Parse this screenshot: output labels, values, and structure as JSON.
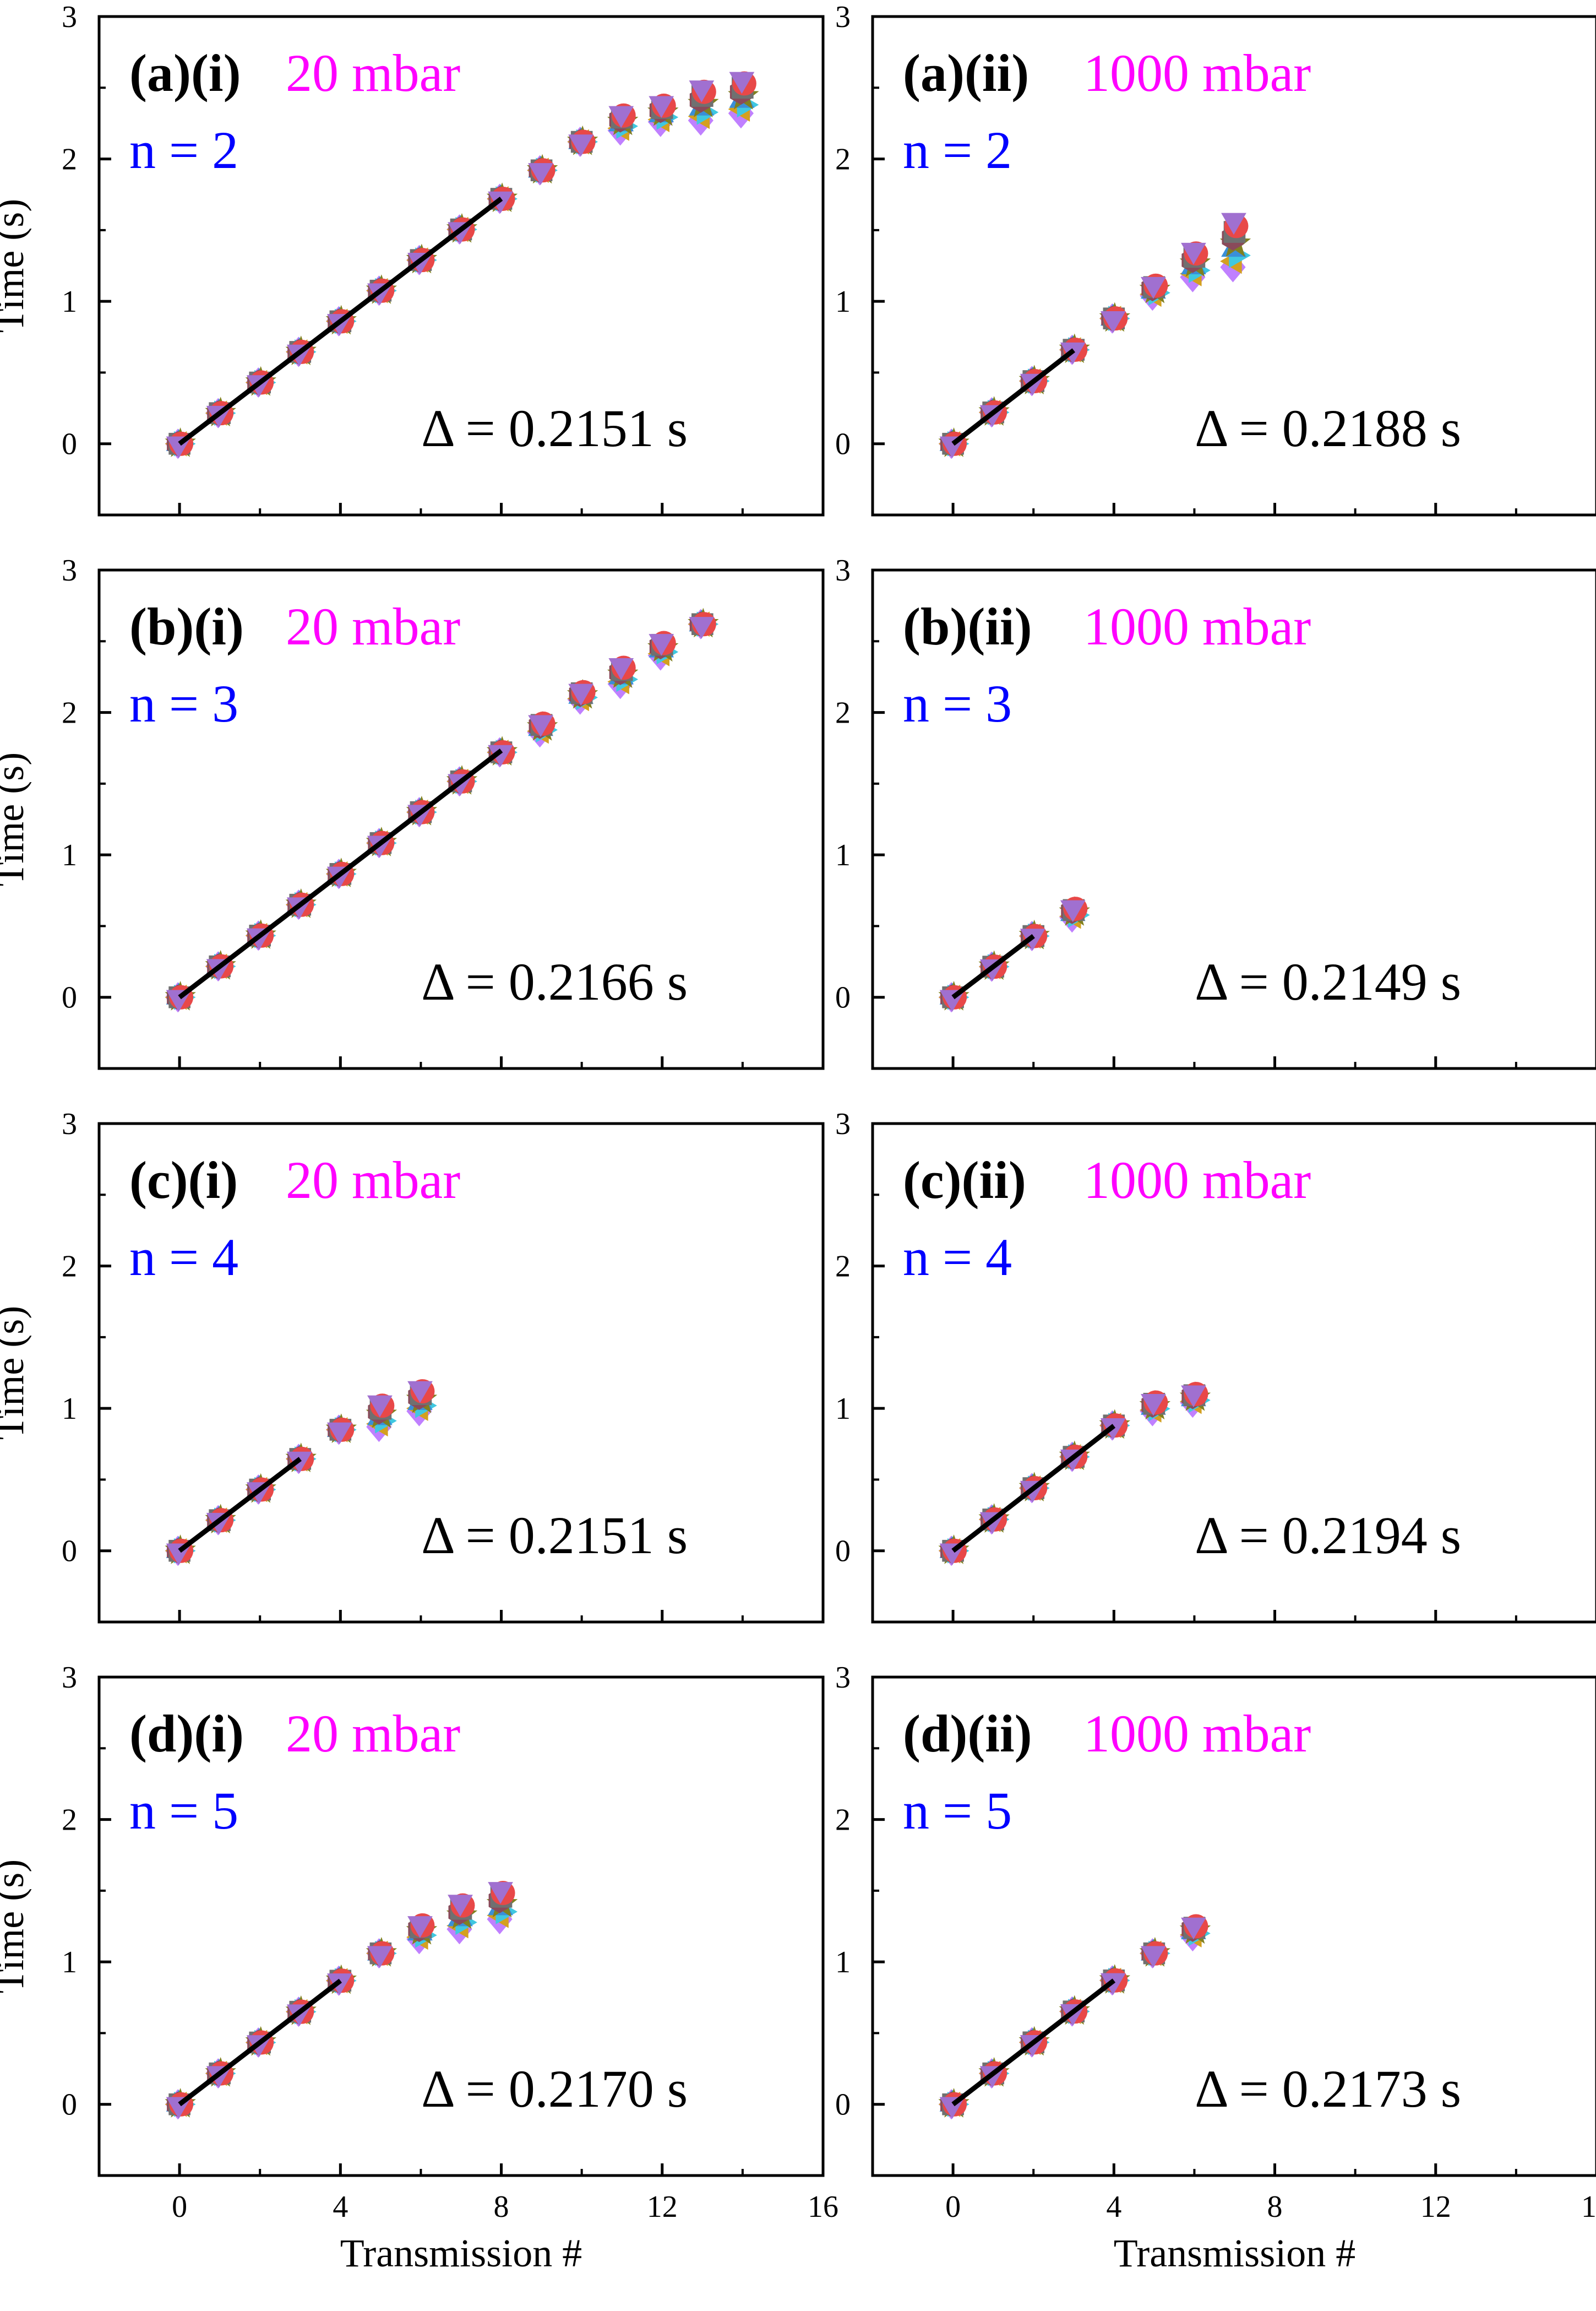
{
  "chart_data": {
    "type": "scatter",
    "xlabel": "Transmission #",
    "ylabel": "Time (s)",
    "xlim": [
      -2,
      16
    ],
    "ylim": [
      -0.5,
      3
    ],
    "xticks": [
      0,
      4,
      8,
      12,
      16
    ],
    "yticks": [
      0,
      1,
      2,
      3
    ],
    "colors": {
      "frame": "#000000",
      "fit": "#000000",
      "pressure": "#ff00ff",
      "n": "#0000ff",
      "markers": [
        "#c080ff",
        "#d4a020",
        "#40c8e0",
        "#3a8fd8",
        "#808020",
        "#8a4a5a",
        "#707070",
        "#e84848",
        "#a070d0"
      ]
    },
    "marker_shapes": [
      "diamond",
      "triangle-left",
      "triangle-right",
      "triangle-up",
      "star",
      "hexagon",
      "square",
      "circle",
      "triangle-down"
    ],
    "panels": [
      {
        "id": "a-i",
        "label": "(a)(i)",
        "pressure": "20 mbar",
        "n": "n = 2",
        "delta": "Δ = 0.2151 s",
        "fit": {
          "slope": 0.2151,
          "x_end": 8
        },
        "points": [
          [
            0,
            0
          ],
          [
            1,
            0.215
          ],
          [
            2,
            0.43
          ],
          [
            3,
            0.645
          ],
          [
            4,
            0.86
          ],
          [
            5,
            1.075
          ],
          [
            6,
            1.29
          ],
          [
            7,
            1.505
          ],
          [
            8,
            1.72
          ],
          [
            9,
            1.92
          ],
          [
            10,
            2.12
          ],
          [
            11,
            2.28
          ],
          [
            12,
            2.35
          ],
          [
            13,
            2.42
          ],
          [
            14,
            2.45
          ]
        ],
        "spread": [
          [
            11,
            2.2,
            2.32
          ],
          [
            12,
            2.26,
            2.39
          ],
          [
            13,
            2.27,
            2.5
          ],
          [
            14,
            2.32,
            2.56
          ]
        ]
      },
      {
        "id": "a-ii",
        "label": "(a)(ii)",
        "pressure": "1000 mbar",
        "n": "n = 2",
        "delta": "Δ = 0.2188 s",
        "fit": {
          "slope": 0.2188,
          "x_end": 3
        },
        "points": [
          [
            0,
            0
          ],
          [
            1,
            0.22
          ],
          [
            2,
            0.44
          ],
          [
            3,
            0.66
          ],
          [
            4,
            0.88
          ],
          [
            5,
            1.09
          ],
          [
            6,
            1.27
          ],
          [
            7,
            1.38
          ]
        ],
        "spread": [
          [
            5,
            1.04,
            1.12
          ],
          [
            6,
            1.17,
            1.36
          ],
          [
            7,
            1.24,
            1.57
          ]
        ]
      },
      {
        "id": "b-i",
        "label": "(b)(i)",
        "pressure": "20 mbar",
        "n": "n = 3",
        "delta": "Δ = 0.2166 s",
        "fit": {
          "slope": 0.2166,
          "x_end": 8
        },
        "points": [
          [
            0,
            0
          ],
          [
            1,
            0.217
          ],
          [
            2,
            0.433
          ],
          [
            3,
            0.65
          ],
          [
            4,
            0.866
          ],
          [
            5,
            1.083
          ],
          [
            6,
            1.3
          ],
          [
            7,
            1.516
          ],
          [
            8,
            1.72
          ],
          [
            9,
            1.9
          ],
          [
            10,
            2.12
          ],
          [
            11,
            2.28
          ],
          [
            12,
            2.46
          ],
          [
            13,
            2.62
          ]
        ],
        "spread": [
          [
            9,
            1.86,
            1.93
          ],
          [
            10,
            2.09,
            2.15
          ],
          [
            11,
            2.2,
            2.33
          ],
          [
            12,
            2.4,
            2.5
          ]
        ]
      },
      {
        "id": "b-ii",
        "label": "(b)(ii)",
        "pressure": "1000 mbar",
        "n": "n = 3",
        "delta": "Δ = 0.2149 s",
        "fit": {
          "slope": 0.2149,
          "x_end": 2
        },
        "points": [
          [
            0,
            0
          ],
          [
            1,
            0.215
          ],
          [
            2,
            0.43
          ],
          [
            3,
            0.61
          ]
        ],
        "spread": [
          [
            3,
            0.56,
            0.63
          ]
        ]
      },
      {
        "id": "c-i",
        "label": "(c)(i)",
        "pressure": "20 mbar",
        "n": "n = 4",
        "delta": "Δ = 0.2151 s",
        "fit": {
          "slope": 0.2151,
          "x_end": 3
        },
        "points": [
          [
            0,
            0
          ],
          [
            1,
            0.215
          ],
          [
            2,
            0.43
          ],
          [
            3,
            0.645
          ],
          [
            4,
            0.85
          ],
          [
            5,
            0.96
          ],
          [
            6,
            1.06
          ]
        ],
        "spread": [
          [
            5,
            0.87,
            1.04
          ],
          [
            6,
            0.98,
            1.14
          ]
        ]
      },
      {
        "id": "c-ii",
        "label": "(c)(ii)",
        "pressure": "1000 mbar",
        "n": "n = 4",
        "delta": "Δ = 0.2194 s",
        "fit": {
          "slope": 0.2194,
          "x_end": 4
        },
        "points": [
          [
            0,
            0
          ],
          [
            1,
            0.22
          ],
          [
            2,
            0.44
          ],
          [
            3,
            0.66
          ],
          [
            4,
            0.88
          ],
          [
            5,
            1.02
          ],
          [
            6,
            1.08
          ]
        ],
        "spread": [
          [
            5,
            0.98,
            1.05
          ],
          [
            6,
            1.04,
            1.11
          ]
        ]
      },
      {
        "id": "d-i",
        "label": "(d)(i)",
        "pressure": "20 mbar",
        "n": "n = 5",
        "delta": "Δ = 0.2170 s",
        "fit": {
          "slope": 0.217,
          "x_end": 4
        },
        "points": [
          [
            0,
            0
          ],
          [
            1,
            0.217
          ],
          [
            2,
            0.434
          ],
          [
            3,
            0.65
          ],
          [
            4,
            0.868
          ],
          [
            5,
            1.06
          ],
          [
            6,
            1.22
          ],
          [
            7,
            1.36
          ],
          [
            8,
            1.47
          ]
        ],
        "spread": [
          [
            6,
            1.16,
            1.27
          ],
          [
            7,
            1.23,
            1.42
          ],
          [
            8,
            1.3,
            1.51
          ]
        ]
      },
      {
        "id": "d-ii",
        "label": "(d)(ii)",
        "pressure": "1000 mbar",
        "n": "n = 5",
        "delta": "Δ = 0.2173 s",
        "fit": {
          "slope": 0.2173,
          "x_end": 4
        },
        "points": [
          [
            0,
            0
          ],
          [
            1,
            0.217
          ],
          [
            2,
            0.435
          ],
          [
            3,
            0.652
          ],
          [
            4,
            0.87
          ],
          [
            5,
            1.06
          ],
          [
            6,
            1.22
          ]
        ],
        "spread": [
          [
            6,
            1.18,
            1.26
          ]
        ]
      }
    ]
  }
}
